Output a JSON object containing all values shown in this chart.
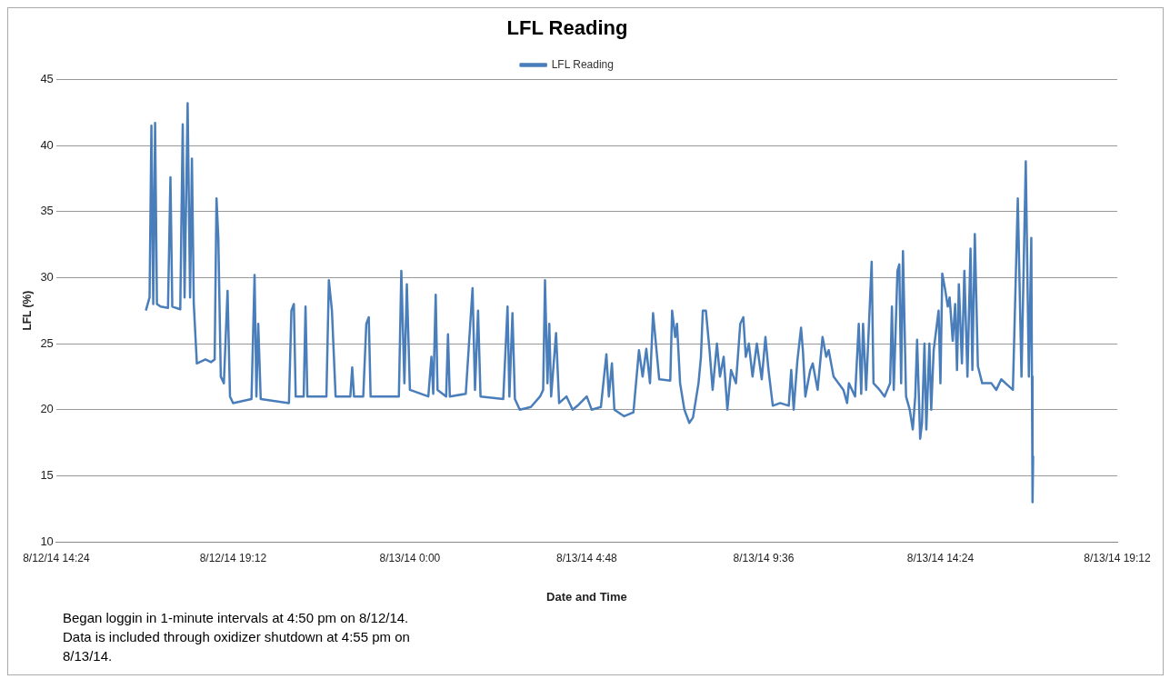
{
  "chart_data": {
    "type": "line",
    "title": "LFL Reading",
    "xlabel": "Date and Time",
    "ylabel": "LFL (%)",
    "legend": "top",
    "grid": "y",
    "marker": "none",
    "line_style": "solid",
    "xlim": [
      "--08-12T14:24",
      "--08-13T19:12"
    ],
    "xticks": [
      {
        "value": "--08-12T14:24",
        "label": "8/12/14 14:24"
      },
      {
        "value": "--08-12T19:12",
        "label": "8/12/14 19:12"
      },
      {
        "value": "--08-13T00:00",
        "label": "8/13/14 0:00"
      },
      {
        "value": "--08-13T04:48",
        "label": "8/13/14 4:48"
      },
      {
        "value": "--08-13T09:36",
        "label": "8/13/14 9:36"
      },
      {
        "value": "--08-13T14:24",
        "label": "8/13/14 14:24"
      },
      {
        "value": "--08-13T19:12",
        "label": "8/13/14 19:12"
      }
    ],
    "ylim": [
      10,
      45
    ],
    "yticks": [
      10,
      15,
      20,
      25,
      30,
      35,
      40,
      45
    ],
    "x": [
      "--08-12T16:50",
      "--08-12T16:56",
      "--08-12T16:59",
      "--08-12T17:02",
      "--08-12T17:05",
      "--08-12T17:08",
      "--08-12T17:14",
      "--08-12T17:26",
      "--08-12T17:30",
      "--08-12T17:33",
      "--08-12T17:46",
      "--08-12T17:50",
      "--08-12T17:53",
      "--08-12T17:58",
      "--08-12T18:02",
      "--08-12T18:05",
      "--08-12T18:08",
      "--08-12T18:13",
      "--08-12T18:27",
      "--08-12T18:36",
      "--08-12T18:42",
      "--08-12T18:45",
      "--08-12T18:48",
      "--08-12T18:52",
      "--08-12T18:57",
      "--08-12T19:03",
      "--08-12T19:07",
      "--08-12T19:12",
      "--08-12T19:42",
      "--08-12T19:47",
      "--08-12T19:50",
      "--08-12T19:53",
      "--08-12T19:57",
      "--08-12T20:43",
      "--08-12T20:47",
      "--08-12T20:51",
      "--08-12T20:54",
      "--08-12T21:07",
      "--08-12T21:10",
      "--08-12T21:13",
      "--08-12T21:44",
      "--08-12T21:48",
      "--08-12T21:53",
      "--08-12T21:59",
      "--08-12T22:23",
      "--08-12T22:26",
      "--08-12T22:29",
      "--08-12T22:44",
      "--08-12T22:49",
      "--08-12T22:53",
      "--08-12T22:56",
      "--08-12T23:42",
      "--08-12T23:46",
      "--08-12T23:51",
      "--08-12T23:55",
      "--08-13T00:00",
      "--08-13T00:30",
      "--08-13T00:35",
      "--08-13T00:38",
      "--08-13T00:42",
      "--08-13T00:45",
      "--08-13T00:59",
      "--08-13T01:02",
      "--08-13T01:05",
      "--08-13T01:31",
      "--08-13T01:42",
      "--08-13T01:46",
      "--08-13T01:51",
      "--08-13T01:55",
      "--08-13T02:32",
      "--08-13T02:39",
      "--08-13T02:42",
      "--08-13T02:47",
      "--08-13T02:51",
      "--08-13T02:59",
      "--08-13T03:17",
      "--08-13T03:32",
      "--08-13T03:37",
      "--08-13T03:40",
      "--08-13T03:44",
      "--08-13T03:47",
      "--08-13T03:50",
      "--08-13T03:58",
      "--08-13T04:03",
      "--08-13T04:15",
      "--08-13T04:25",
      "--08-13T04:33",
      "--08-13T04:48",
      "--08-13T04:56",
      "--08-13T05:11",
      "--08-13T05:20",
      "--08-13T05:24",
      "--08-13T05:29",
      "--08-13T05:33",
      "--08-13T05:49",
      "--08-13T06:04",
      "--08-13T06:13",
      "--08-13T06:19",
      "--08-13T06:25",
      "--08-13T06:31",
      "--08-13T06:36",
      "--08-13T06:46",
      "--08-13T07:04",
      "--08-13T07:07",
      "--08-13T07:12",
      "--08-13T07:15",
      "--08-13T07:20",
      "--08-13T07:27",
      "--08-13T07:35",
      "--08-13T07:41",
      "--08-13T07:50",
      "--08-13T07:54",
      "--08-13T07:57",
      "--08-13T08:02",
      "--08-13T08:08",
      "--08-13T08:13",
      "--08-13T08:20",
      "--08-13T08:25",
      "--08-13T08:31",
      "--08-13T08:37",
      "--08-13T08:43",
      "--08-13T08:51",
      "--08-13T08:58",
      "--08-13T09:03",
      "--08-13T09:07",
      "--08-13T09:12",
      "--08-13T09:18",
      "--08-13T09:25",
      "--08-13T09:33",
      "--08-13T09:39",
      "--08-13T09:44",
      "--08-13T09:51",
      "--08-13T10:03",
      "--08-13T10:17",
      "--08-13T10:21",
      "--08-13T10:25",
      "--08-13T10:31",
      "--08-13T10:37",
      "--08-13T10:40",
      "--08-13T10:44",
      "--08-13T10:52",
      "--08-13T10:56",
      "--08-13T11:04",
      "--08-13T11:12",
      "--08-13T11:18",
      "--08-13T11:22",
      "--08-13T11:30",
      "--08-13T11:46",
      "--08-13T11:52",
      "--08-13T11:55",
      "--08-13T12:05",
      "--08-13T12:11",
      "--08-13T12:15",
      "--08-13T12:18",
      "--08-13T12:23",
      "--08-13T12:32",
      "--08-13T12:35",
      "--08-13T12:45",
      "--08-13T12:53",
      "--08-13T13:02",
      "--08-13T13:05",
      "--08-13T13:08",
      "--08-13T13:14",
      "--08-13T13:17",
      "--08-13T13:20",
      "--08-13T13:23",
      "--08-13T13:28",
      "--08-13T13:34",
      "--08-13T13:39",
      "--08-13T13:43",
      "--08-13T13:46",
      "--08-13T13:51",
      "--08-13T13:54",
      "--08-13T13:58",
      "--08-13T14:01",
      "--08-13T14:06",
      "--08-13T14:09",
      "--08-13T14:13",
      "--08-13T14:21",
      "--08-13T14:24",
      "--08-13T14:27",
      "--08-13T14:32",
      "--08-13T14:36",
      "--08-13T14:39",
      "--08-13T14:44",
      "--08-13T14:48",
      "--08-13T14:51",
      "--08-13T14:54",
      "--08-13T14:59",
      "--08-13T15:03",
      "--08-13T15:08",
      "--08-13T15:13",
      "--08-13T15:16",
      "--08-13T15:20",
      "--08-13T15:25",
      "--08-13T15:32",
      "--08-13T15:47",
      "--08-13T15:55",
      "--08-13T16:03",
      "--08-13T16:10",
      "--08-13T16:22",
      "--08-13T16:30",
      "--08-13T16:36",
      "--08-13T16:43",
      "--08-13T16:48",
      "--08-13T16:52",
      "--08-13T16:53",
      "--08-13T16:54",
      "--08-13T16:55"
    ],
    "series": [
      {
        "name": "LFL Reading",
        "color": "#4a7ebb",
        "values": [
          27.5,
          28.5,
          41.5,
          28,
          41.7,
          28,
          27.8,
          27.7,
          37.6,
          27.8,
          27.6,
          41.6,
          28.5,
          43.2,
          28.5,
          39,
          28,
          23.5,
          23.8,
          23.6,
          23.8,
          36,
          33,
          22.5,
          22,
          29,
          21,
          20.5,
          20.8,
          30.2,
          21,
          26.5,
          20.8,
          20.5,
          27.5,
          28,
          21,
          21,
          27.8,
          21,
          21,
          29.8,
          27.5,
          21,
          21,
          23.2,
          21,
          21,
          26.5,
          27,
          21,
          21,
          30.5,
          22,
          29.5,
          21.5,
          21,
          24,
          21.2,
          28.7,
          21.5,
          21,
          25.7,
          21,
          21.2,
          29.2,
          21.5,
          27.5,
          21,
          20.8,
          27.8,
          21,
          27.3,
          20.8,
          20,
          20.2,
          21,
          21.5,
          29.8,
          22,
          26.5,
          21,
          25.8,
          20.5,
          21,
          20,
          20.3,
          21,
          20,
          20.2,
          24.2,
          21,
          23.5,
          20,
          19.5,
          19.8,
          24.5,
          22.5,
          24.6,
          22,
          27.3,
          22.3,
          22.2,
          27.5,
          25.5,
          26.5,
          22,
          20,
          19,
          19.4,
          22,
          24,
          27.5,
          27.5,
          24.5,
          21.5,
          25,
          22.5,
          24,
          20,
          23,
          22,
          26.5,
          27,
          24,
          25,
          22.5,
          25,
          22.3,
          25.5,
          23,
          20.3,
          20.5,
          20.3,
          23,
          20,
          23.7,
          26.2,
          24.5,
          21,
          23,
          23.5,
          21.5,
          25.5,
          24,
          24.5,
          22.5,
          21.5,
          20.5,
          22,
          21,
          26.5,
          21.2,
          26.5,
          21.5,
          31.2,
          22,
          21.5,
          21,
          22,
          27.8,
          21.5,
          30.5,
          31,
          22,
          32,
          21,
          20,
          18.5,
          21,
          25.3,
          17.8,
          19,
          25,
          18.5,
          25,
          20,
          24.5,
          27.5,
          22,
          30.3,
          29,
          27.8,
          28.5,
          25.2,
          28,
          23,
          29.5,
          23.5,
          30.5,
          22.5,
          32.2,
          23,
          33.3,
          23.3,
          22,
          22,
          21.5,
          22.3,
          22,
          21.5,
          36,
          22.5,
          38.8,
          22.5,
          33,
          22.5,
          13,
          16.5
        ]
      }
    ],
    "annotations": [
      "Began loggin in 1-minute intervals at 4:50 pm on 8/12/14.\nData is included through oxidizer shutdown at 4:55 pm on 8/13/14."
    ]
  }
}
